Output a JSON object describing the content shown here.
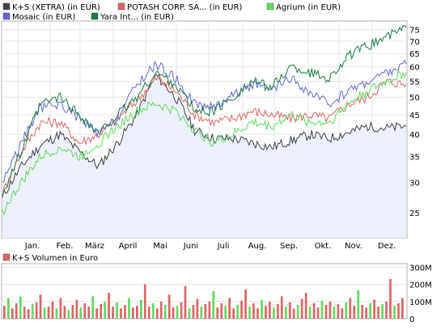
{
  "chart_data": [
    {
      "type": "line",
      "log_scale": true,
      "legend_position": "top-left",
      "x_range": [
        "Dez.",
        "Dez."
      ],
      "xtick_labels": [
        "Jan.",
        "Feb.",
        "März",
        "April",
        "Mai",
        "Juni",
        "Juli",
        "Aug.",
        "Sep.",
        "Okt.",
        "Nov.",
        "Dez."
      ],
      "ytick_labels": [
        "25",
        "30",
        "35",
        "40",
        "45",
        "50",
        "55",
        "60",
        "65",
        "70",
        "75"
      ],
      "ytick_values": [
        25,
        30,
        35,
        40,
        45,
        50,
        55,
        60,
        65,
        70,
        75
      ],
      "ylim": [
        21.5,
        79
      ],
      "area_fill": "#eef1fb",
      "series": [
        {
          "name": "K+S (XETRA) (in EUR)",
          "color": "#3d4048",
          "values": [
            27.5,
            33,
            37.5,
            40,
            36,
            33,
            38,
            45,
            57,
            50,
            41,
            39,
            39,
            38,
            37,
            38.5,
            40,
            39,
            40.5,
            42,
            41.5,
            42
          ]
        },
        {
          "name": "POTASH CORP. SA... (in EUR)",
          "color": "#e06464",
          "values": [
            28,
            36,
            43,
            43,
            38,
            40,
            44,
            49,
            56,
            52,
            45,
            43,
            44,
            46,
            45,
            44,
            45,
            44,
            48,
            50,
            55,
            54
          ]
        },
        {
          "name": "Agrium (in EUR)",
          "color": "#5edc5e",
          "values": [
            25,
            30,
            35,
            37,
            35,
            38,
            42,
            46,
            48,
            46,
            41,
            38,
            40,
            43,
            42,
            45,
            43,
            43,
            48,
            52,
            55,
            58
          ]
        },
        {
          "name": "Mosaic (in EUR)",
          "color": "#6466dc",
          "values": [
            30,
            38,
            47,
            48,
            44,
            40,
            44,
            54,
            61,
            56,
            48,
            47,
            51,
            54,
            52,
            56,
            51,
            48,
            52,
            55,
            58,
            61
          ]
        },
        {
          "name": "Yara Int... (in EUR)",
          "color": "#177c41",
          "values": [
            28,
            36,
            48,
            50,
            45,
            40,
            45,
            50,
            58,
            54,
            46,
            46,
            50,
            55,
            53,
            60,
            58,
            56,
            64,
            68,
            72,
            76
          ]
        }
      ]
    },
    {
      "type": "bar",
      "title": "K+S Volumen in Euro",
      "color": "#e06464",
      "alt_color": "#5edc5e",
      "ytick_labels": [
        "0",
        "100M",
        "200M",
        "300M"
      ],
      "ytick_values": [
        0,
        100,
        200,
        300
      ],
      "ylim": [
        0,
        320
      ],
      "values": [
        75,
        120,
        60,
        90,
        130,
        70,
        55,
        85,
        95,
        140,
        65,
        70,
        100,
        60,
        120,
        75,
        50,
        80,
        110,
        65,
        90,
        70,
        130,
        60,
        85,
        100,
        150,
        70,
        95,
        60,
        80,
        120,
        65,
        75,
        110,
        200,
        70,
        90,
        60,
        100,
        80,
        140,
        65,
        75,
        95,
        190,
        60,
        80,
        115,
        70,
        85,
        100,
        160,
        65,
        90,
        75,
        120,
        60,
        80,
        105,
        170,
        70,
        90,
        60,
        110,
        75,
        100,
        65,
        85,
        130,
        70,
        95,
        60,
        80,
        115,
        150,
        70,
        90,
        65,
        105,
        80,
        100,
        70,
        85,
        60,
        95,
        120,
        75,
        165,
        80,
        65,
        90,
        110,
        70,
        85,
        100,
        230,
        75,
        90,
        120
      ]
    }
  ]
}
